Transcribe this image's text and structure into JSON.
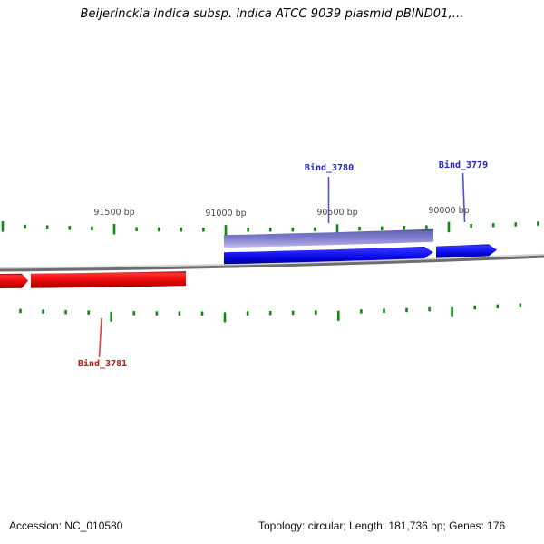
{
  "title": "Beijerinckia indica subsp. indica ATCC 9039 plasmid pBIND01,...",
  "ruler": {
    "unit": "bp",
    "labels": [
      "91500 bp",
      "91000 bp",
      "90500 bp",
      "90000 bp"
    ],
    "minor_tick_interval_bp": 100,
    "major_tick_interval_bp": 500,
    "visible_range_bp": [
      92000,
      89800
    ],
    "direction": "bp decreases left to right"
  },
  "genes": [
    {
      "label": "Bind_3780",
      "strand": "top",
      "approx_span_bp": [
        90070,
        91010
      ],
      "tracks": [
        "purple-outer-bar",
        "blue-arrow-right"
      ]
    },
    {
      "label": "Bind_3779",
      "strand": "top",
      "approx_span_bp": [
        89790,
        90060
      ],
      "tracks": [
        "blue-arrow-right"
      ]
    },
    {
      "label": "Bind_3781",
      "strand": "bottom",
      "approx_span_bp": [
        91180,
        92010
      ],
      "tracks": [
        "red-arrow",
        "clipped-at-left-edge"
      ]
    }
  ],
  "status_bar": {
    "accession": "Accession: NC_010580",
    "summary": "Topology: circular; Length: 181,736 bp; Genes: 176"
  },
  "colors": {
    "tick_green": "#0f8a0f",
    "backbone_gray": "#6e6e6e",
    "backbone_highlight": "#d2d2d2",
    "blue_gene_gradient": [
      "#000070",
      "#3434ff",
      "#1515f0",
      "#0000d0",
      "#000078"
    ],
    "purple_gene_gradient": [
      "#3f3f85",
      "#6868b8",
      "#7d7acf",
      "#a29ddd",
      "#cac6ec"
    ],
    "red_gene_gradient": [
      "#7a0000",
      "#ff3030",
      "#f01010",
      "#cc0000",
      "#7e0000"
    ],
    "gene_label_blue": "#2222cc",
    "gene_label_red": "#cc1111",
    "callout_blue": "#5050dd",
    "callout_red": "#e04040",
    "ruler_text": "#4a4a4a"
  }
}
